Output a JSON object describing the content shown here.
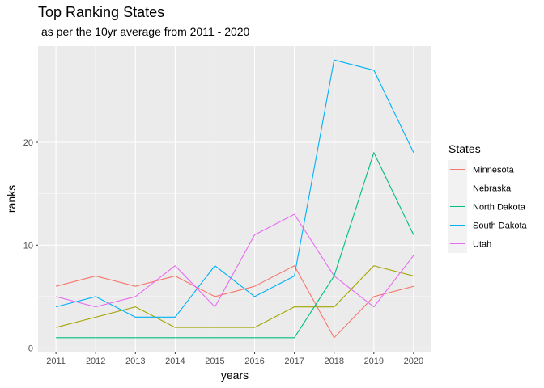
{
  "chart_data": {
    "type": "line",
    "title": "Top Ranking States",
    "subtitle": "as per the 10yr average from 2011 - 2020",
    "xlabel": "years",
    "ylabel": "ranks",
    "x": [
      2011,
      2012,
      2013,
      2014,
      2015,
      2016,
      2017,
      2018,
      2019,
      2020
    ],
    "xlim": [
      2010.55,
      2020.45
    ],
    "ylim": [
      -0.35,
      29.35
    ],
    "y_ticks": [
      0,
      10,
      20
    ],
    "grid": true,
    "legend": {
      "title": "States",
      "position": "right"
    },
    "series": [
      {
        "name": "Minnesota",
        "color": "#F8766D",
        "values": [
          6,
          7,
          6,
          7,
          5,
          6,
          8,
          1,
          5,
          6
        ]
      },
      {
        "name": "Nebraska",
        "color": "#A3A500",
        "values": [
          2,
          3,
          4,
          2,
          2,
          2,
          4,
          4,
          8,
          7
        ]
      },
      {
        "name": "North Dakota",
        "color": "#00BF7D",
        "values": [
          1,
          1,
          1,
          1,
          1,
          1,
          1,
          7,
          19,
          11
        ]
      },
      {
        "name": "South Dakota",
        "color": "#00B0F6",
        "values": [
          4,
          5,
          3,
          3,
          8,
          5,
          7,
          28,
          27,
          19
        ]
      },
      {
        "name": "Utah",
        "color": "#E76BF3",
        "values": [
          5,
          4,
          5,
          8,
          4,
          11,
          13,
          7,
          4,
          9
        ]
      }
    ]
  }
}
